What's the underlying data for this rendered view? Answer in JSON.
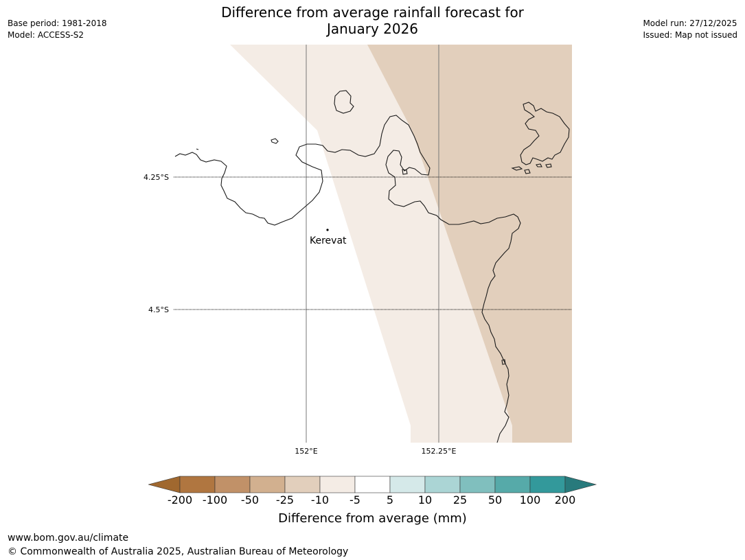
{
  "header": {
    "title_line1": "Difference from average rainfall forecast for",
    "title_line2": "January 2026",
    "base_period": "Base period: 1981-2018",
    "model": "Model: ACCESS-S2",
    "model_run": "Model run: 27/12/2025",
    "issued": "Issued: Map not issued"
  },
  "map": {
    "lat_labels": [
      "4.25°S",
      "4.5°S"
    ],
    "lon_labels": [
      "152°E",
      "152.25°E"
    ],
    "place": "Kerevat"
  },
  "legend": {
    "ticks": [
      "-200",
      "-100",
      "-50",
      "-25",
      "-10",
      "-5",
      "5",
      "10",
      "25",
      "50",
      "100",
      "200"
    ],
    "colors": [
      "#a0682f",
      "#b07640",
      "#c19168",
      "#d2b08f",
      "#e2cfbc",
      "#f4ece5",
      "#ffffff",
      "#d5e9e9",
      "#abd5d5",
      "#80bfbe",
      "#56aaa9",
      "#33999b",
      "#287a7c"
    ],
    "title": "Difference from average (mm)"
  },
  "footer": {
    "url": "www.bom.gov.au/climate",
    "copyright": "© Commonwealth of Australia 2025, Australian Bureau of Meteorology"
  }
}
